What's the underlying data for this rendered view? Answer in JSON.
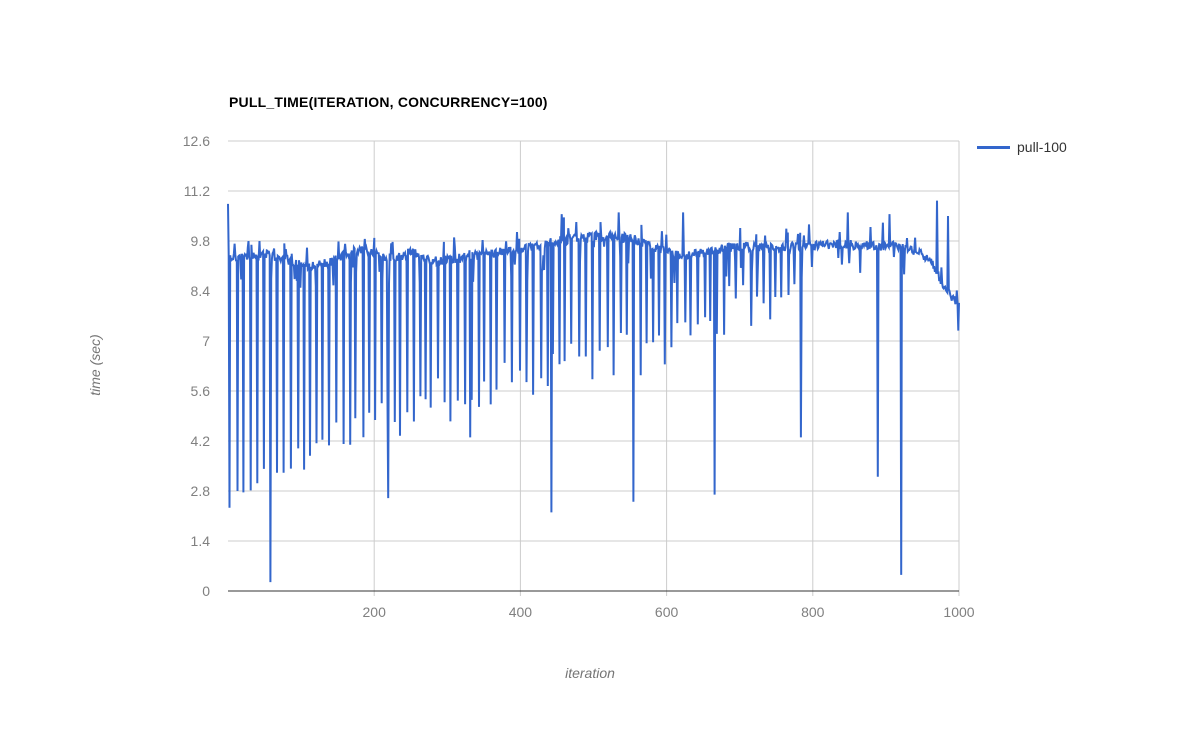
{
  "page": {
    "background": "#ffffff"
  },
  "style": {
    "grid_color": "#cccccc",
    "axis_line_color": "#333333",
    "tick_label_color": "#808080",
    "axis_title_color": "#757575",
    "title_color": "#000000",
    "legend_text_color": "#333333",
    "series_color": "#3366cc"
  },
  "chart_data": {
    "type": "line",
    "title": "PULL_TIME(ITERATION, CONCURRENCY=100)",
    "xlabel": "iteration",
    "ylabel": "time (sec)",
    "xlim": [
      0,
      1000
    ],
    "ylim": [
      0,
      12.6
    ],
    "grid": true,
    "legend_position": "top-right",
    "x_tick_labels": [
      "200",
      "400",
      "600",
      "800",
      "1000"
    ],
    "x_tick_values": [
      200,
      400,
      600,
      800,
      1000
    ],
    "y_tick_labels": [
      "0",
      "1.4",
      "2.8",
      "4.2",
      "5.6",
      "7",
      "8.4",
      "9.8",
      "11.2",
      "12.6"
    ],
    "y_tick_values": [
      0,
      1.4,
      2.8,
      4.2,
      5.6,
      7,
      8.4,
      9.8,
      11.2,
      12.6
    ],
    "series": [
      {
        "name": "pull-100",
        "color": "#3366cc",
        "points_n": 1000,
        "first_value": 10.84,
        "noise": 0.13,
        "seed": 11,
        "baseline_keypoints": [
          [
            1,
            9.4
          ],
          [
            25,
            9.3
          ],
          [
            50,
            9.45
          ],
          [
            80,
            9.3
          ],
          [
            105,
            9.1
          ],
          [
            135,
            9.15
          ],
          [
            165,
            9.45
          ],
          [
            185,
            9.6
          ],
          [
            205,
            9.4
          ],
          [
            230,
            9.3
          ],
          [
            252,
            9.5
          ],
          [
            275,
            9.25
          ],
          [
            310,
            9.3
          ],
          [
            345,
            9.4
          ],
          [
            380,
            9.5
          ],
          [
            415,
            9.6
          ],
          [
            450,
            9.8
          ],
          [
            490,
            9.9
          ],
          [
            525,
            9.95
          ],
          [
            555,
            9.85
          ],
          [
            585,
            9.6
          ],
          [
            612,
            9.4
          ],
          [
            640,
            9.45
          ],
          [
            675,
            9.6
          ],
          [
            710,
            9.65
          ],
          [
            745,
            9.6
          ],
          [
            780,
            9.65
          ],
          [
            815,
            9.7
          ],
          [
            850,
            9.7
          ],
          [
            885,
            9.65
          ],
          [
            915,
            9.65
          ],
          [
            945,
            9.5
          ],
          [
            962,
            9.2
          ],
          [
            975,
            8.7
          ],
          [
            987,
            8.3
          ],
          [
            1000,
            8.0
          ]
        ],
        "periodic_dips": {
          "start": 32,
          "end": 780,
          "period": 9,
          "jitter": 0.7,
          "floor_keypoints": [
            [
              4,
              2.6
            ],
            [
              60,
              3.0
            ],
            [
              100,
              3.8
            ],
            [
              150,
              4.3
            ],
            [
              200,
              4.7
            ],
            [
              260,
              5.1
            ],
            [
              340,
              5.6
            ],
            [
              420,
              6.2
            ],
            [
              500,
              6.5
            ],
            [
              560,
              6.6
            ],
            [
              620,
              7.1
            ],
            [
              680,
              7.8
            ],
            [
              780,
              8.5
            ]
          ]
        },
        "deep_dips": [
          [
            3,
            2.33
          ],
          [
            14,
            2.8
          ],
          [
            22,
            2.76
          ],
          [
            59,
            0.25
          ],
          [
            220,
            2.6
          ],
          [
            332,
            4.3
          ],
          [
            443,
            2.2
          ],
          [
            555,
            2.5
          ],
          [
            666,
            2.7
          ],
          [
            784,
            4.3
          ],
          [
            889,
            3.2
          ],
          [
            921,
            0.45
          ]
        ],
        "up_spikes": [
          [
            457,
            10.55
          ],
          [
            535,
            10.6
          ],
          [
            623,
            10.6
          ],
          [
            848,
            10.6
          ],
          [
            905,
            10.55
          ],
          [
            970,
            10.93
          ],
          [
            985,
            10.5
          ]
        ]
      }
    ]
  }
}
